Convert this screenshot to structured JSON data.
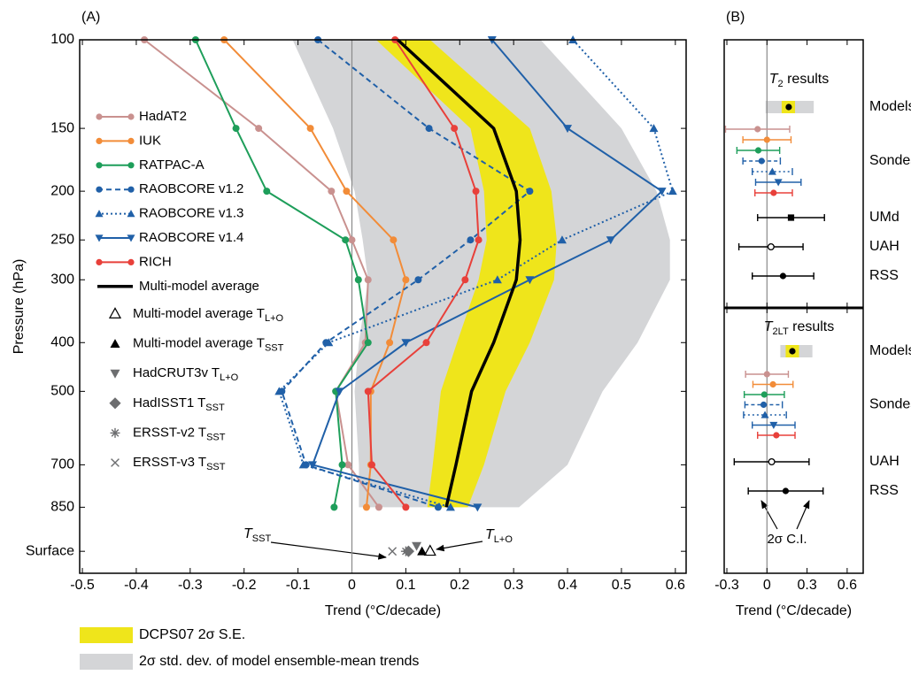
{
  "chart_data": [
    {
      "type": "profile",
      "label": "(A)",
      "x_label": "Trend (°C/decade)",
      "y_label": "Pressure (hPa)",
      "xlim": [
        -0.505,
        0.62
      ],
      "xticks": [
        -0.5,
        -0.4,
        -0.3,
        -0.2,
        -0.1,
        0,
        0.1,
        0.2,
        0.3,
        0.4,
        0.5,
        0.6
      ],
      "ylim": [
        100,
        1150
      ],
      "ylog": true,
      "y_reversed": true,
      "zero_line": true,
      "yticks": [
        100,
        150,
        200,
        250,
        300,
        400,
        500,
        700,
        850,
        {
          "value": 1040,
          "label": "Surface"
        }
      ],
      "levels": [
        100,
        150,
        200,
        250,
        300,
        400,
        500,
        700,
        850
      ],
      "bands": [
        {
          "name": "2σ std. dev. of model ensemble-mean trends",
          "color": "#d4d5d7",
          "low": [
            -0.11,
            -0.035,
            0.005,
            0.02,
            0.03,
            0.013,
            0.005,
            0.013,
            0.013
          ],
          "high": [
            0.35,
            0.5,
            0.565,
            0.59,
            0.59,
            0.53,
            0.465,
            0.4,
            0.31
          ]
        },
        {
          "name": "DCPS07 2σ S.E.",
          "color": "#efe51b",
          "low": [
            0.045,
            0.22,
            0.245,
            0.25,
            0.235,
            0.195,
            0.165,
            0.15,
            0.14
          ],
          "high": [
            0.145,
            0.33,
            0.37,
            0.38,
            0.375,
            0.33,
            0.285,
            0.245,
            0.215
          ]
        }
      ],
      "series": [
        {
          "name": "HadAT2",
          "color": "#c9918f",
          "marker": "circle",
          "dash": "none",
          "values": [
            -0.385,
            -0.173,
            -0.038,
            0.0,
            0.03,
            0.025,
            -0.03,
            -0.007,
            0.05
          ]
        },
        {
          "name": "IUK",
          "color": "#f28c38",
          "marker": "circle",
          "dash": "none",
          "values": [
            -0.237,
            -0.077,
            -0.01,
            0.077,
            0.1,
            0.07,
            0.035,
            0.035,
            0.027
          ]
        },
        {
          "name": "RATPAC-A",
          "color": "#1e9e5a",
          "marker": "circle",
          "dash": "none",
          "values": [
            -0.29,
            -0.215,
            -0.158,
            -0.012,
            0.012,
            0.03,
            -0.03,
            -0.018,
            -0.033
          ]
        },
        {
          "name": "RAOBCORE v1.2",
          "color": "#2060a8",
          "marker": "circle",
          "dash": "6,4",
          "values": [
            -0.063,
            0.143,
            0.33,
            0.22,
            0.123,
            -0.048,
            -0.13,
            -0.085,
            0.16
          ]
        },
        {
          "name": "RAOBCORE v1.3",
          "color": "#2060a8",
          "marker": "triangle",
          "dash": "2,3",
          "values": [
            0.41,
            0.56,
            0.595,
            0.39,
            0.27,
            -0.043,
            -0.135,
            -0.09,
            0.183
          ]
        },
        {
          "name": "RAOBCORE v1.4",
          "color": "#2060a8",
          "marker": "triangle-down",
          "dash": "none",
          "values": [
            0.26,
            0.4,
            0.575,
            0.48,
            0.33,
            0.1,
            -0.023,
            -0.073,
            0.233
          ]
        },
        {
          "name": "RICH",
          "color": "#e8403a",
          "marker": "circle",
          "dash": "none",
          "values": [
            0.08,
            0.19,
            0.23,
            0.235,
            0.21,
            0.138,
            0.03,
            0.037,
            0.1
          ]
        },
        {
          "name": "Multi-model average",
          "color": "#000000",
          "marker": "none",
          "dash": "none",
          "width": 3.5,
          "values": [
            0.085,
            0.263,
            0.305,
            0.312,
            0.305,
            0.263,
            0.222,
            0.193,
            0.175
          ]
        }
      ],
      "surface": [
        {
          "name": "Multi-model average T",
          "subscript": "L+O",
          "marker": "triangle-open",
          "color": "#000000",
          "value": 0.145
        },
        {
          "name": "Multi-model average T",
          "subscript": "SST",
          "marker": "triangle",
          "color": "#000000",
          "value": 0.13
        },
        {
          "name": "HadCRUT3v T",
          "subscript": "L+O",
          "marker": "triangle-down",
          "color": "#6d6e70",
          "value": 0.12
        },
        {
          "name": "HadISST1 T",
          "subscript": "SST",
          "marker": "diamond",
          "color": "#6d6e70",
          "value": 0.105
        },
        {
          "name": "ERSST-v2 T",
          "subscript": "SST",
          "marker": "star",
          "color": "#6d6e70",
          "value": 0.1
        },
        {
          "name": "ERSST-v3 T",
          "subscript": "SST",
          "marker": "x",
          "color": "#6d6e70",
          "value": 0.075
        }
      ],
      "annotations": [
        {
          "text": "T",
          "subscript": "SST"
        },
        {
          "text": "T",
          "subscript": "L+O"
        }
      ]
    },
    {
      "type": "interval",
      "label": "(B)",
      "title": "T",
      "title_subscript": "2",
      "title_rest": " results",
      "xlim": [
        -0.32,
        0.72
      ],
      "xticks": [
        -0.3,
        0,
        0.3,
        0.6
      ],
      "zero_line": true,
      "models": {
        "label": "Models",
        "value": 0.163,
        "range": [
          -0.01,
          0.35
        ],
        "se": [
          0.11,
          0.21
        ]
      },
      "groups": [
        {
          "label": "Sondes",
          "entries": [
            {
              "color": "#c9918f",
              "marker": "circle",
              "dash": "none",
              "value": -0.07,
              "error": 0.24
            },
            {
              "color": "#f28c38",
              "marker": "circle",
              "dash": "none",
              "value": 0,
              "error": 0.18
            },
            {
              "color": "#1e9e5a",
              "marker": "circle",
              "dash": "none",
              "value": -0.065,
              "error": 0.16
            },
            {
              "color": "#2060a8",
              "marker": "circle",
              "dash": "4,3",
              "value": -0.04,
              "error": 0.14
            },
            {
              "color": "#2060a8",
              "marker": "triangle",
              "dash": "2,3",
              "value": 0.04,
              "error": 0.15
            },
            {
              "color": "#2060a8",
              "marker": "triangle-down",
              "dash": "none",
              "value": 0.085,
              "error": 0.17
            },
            {
              "color": "#e8403a",
              "marker": "circle",
              "dash": "none",
              "value": 0.05,
              "error": 0.14
            }
          ]
        },
        {
          "label": "UMd",
          "entries": [
            {
              "color": "#000000",
              "marker": "square",
              "dash": "none",
              "value": 0.18,
              "error": 0.25
            }
          ]
        },
        {
          "label": "UAH",
          "entries": [
            {
              "color": "#000000",
              "marker": "circle-open",
              "dash": "none",
              "value": 0.03,
              "error": 0.24
            }
          ]
        },
        {
          "label": "RSS",
          "entries": [
            {
              "color": "#000000",
              "marker": "circle",
              "dash": "none",
              "value": 0.12,
              "error": 0.23
            }
          ]
        }
      ]
    },
    {
      "type": "interval",
      "title": "T",
      "title_subscript": "2LT",
      "title_rest": " results",
      "x_label": "Trend (°C/decade)",
      "xlim": [
        -0.32,
        0.72
      ],
      "xticks": [
        -0.3,
        0,
        0.3,
        0.6
      ],
      "zero_line": true,
      "annotation": "2σ C.I.",
      "models": {
        "label": "Models",
        "value": 0.19,
        "range": [
          0.1,
          0.34
        ],
        "se": [
          0.14,
          0.24
        ]
      },
      "groups": [
        {
          "label": "Sondes",
          "entries": [
            {
              "color": "#c9918f",
              "marker": "circle",
              "dash": "none",
              "value": 0.0,
              "error": 0.16
            },
            {
              "color": "#f28c38",
              "marker": "circle",
              "dash": "none",
              "value": 0.045,
              "error": 0.15
            },
            {
              "color": "#1e9e5a",
              "marker": "circle",
              "dash": "none",
              "value": -0.02,
              "error": 0.15
            },
            {
              "color": "#2060a8",
              "marker": "circle",
              "dash": "4,3",
              "value": -0.025,
              "error": 0.14
            },
            {
              "color": "#2060a8",
              "marker": "triangle",
              "dash": "2,3",
              "value": -0.015,
              "error": 0.16
            },
            {
              "color": "#2060a8",
              "marker": "triangle-down",
              "dash": "none",
              "value": 0.05,
              "error": 0.16
            },
            {
              "color": "#e8403a",
              "marker": "circle",
              "dash": "none",
              "value": 0.07,
              "error": 0.14
            }
          ]
        },
        {
          "label": "UAH",
          "entries": [
            {
              "color": "#000000",
              "marker": "circle-open",
              "dash": "none",
              "value": 0.035,
              "error": 0.28
            }
          ]
        },
        {
          "label": "RSS",
          "entries": [
            {
              "color": "#000000",
              "marker": "circle",
              "dash": "none",
              "value": 0.14,
              "error": 0.28
            }
          ]
        }
      ]
    }
  ]
}
